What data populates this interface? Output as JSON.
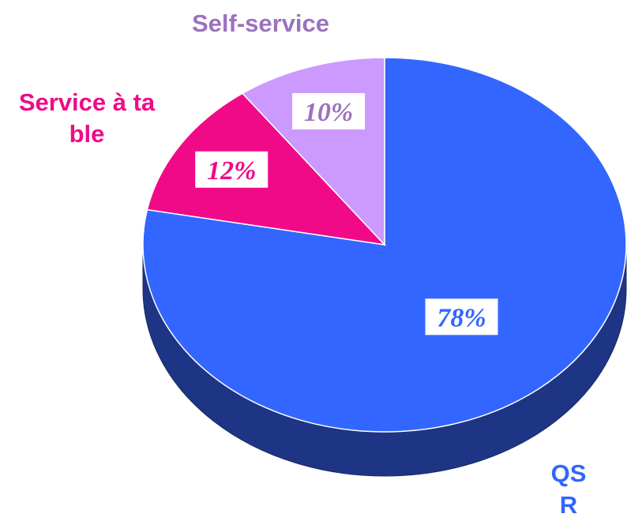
{
  "chart_data": {
    "type": "pie",
    "categories": [
      "QSR",
      "Service à table",
      "Self-service"
    ],
    "values": [
      78,
      12,
      10
    ],
    "value_labels": [
      "78%",
      "12%",
      "10%"
    ],
    "colors": [
      "#3366ff",
      "#f00a88",
      "#cc99ff"
    ],
    "label_colors": [
      "#3366ff",
      "#f00a88",
      "#9b72c0"
    ]
  }
}
